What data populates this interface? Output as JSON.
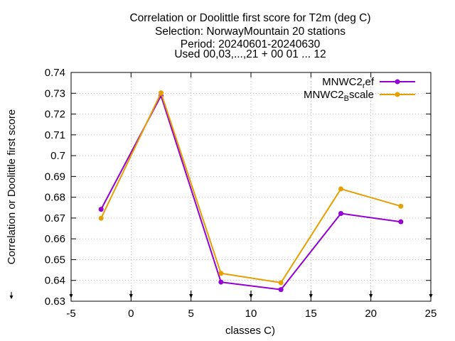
{
  "chart_data": {
    "type": "line",
    "title_lines": [
      "Correlation or Doolittle first score  for T2m (deg C)",
      "Selection: NorwayMountain     20 stations",
      "Period: 20240601-20240630",
      "Used 00,03,...,21 + 00 01 ... 12"
    ],
    "xlabel": "classes C)",
    "ylabel": "Correlation or Doolittle first score",
    "xlim": [
      -5,
      25
    ],
    "ylim": [
      0.63,
      0.74
    ],
    "xticks": [
      "-5",
      "0",
      "5",
      "10",
      "15",
      "20",
      "25"
    ],
    "yticks": [
      "0.63",
      "0.64",
      "0.65",
      "0.66",
      "0.67",
      "0.68",
      "0.69",
      "0.7",
      "0.71",
      "0.72",
      "0.73",
      "0.74"
    ],
    "grid": true,
    "legend_position": "top-right",
    "series": [
      {
        "name_base": "MNWC2",
        "name_sub": "r",
        "name_tail": "ef",
        "color": "#9400d3",
        "x": [
          -2.5,
          2.5,
          7.5,
          12.5,
          17.5,
          22.5
        ],
        "y": [
          0.6742,
          0.7288,
          0.6392,
          0.6356,
          0.6722,
          0.6682
        ]
      },
      {
        "name_base": "MNWC2",
        "name_sub": "B",
        "name_tail": "scale",
        "color": "#e69f00",
        "x": [
          -2.5,
          2.5,
          7.5,
          12.5,
          17.5,
          22.5
        ],
        "y": [
          0.6699,
          0.7302,
          0.6434,
          0.6389,
          0.684,
          0.6757
        ]
      }
    ]
  }
}
